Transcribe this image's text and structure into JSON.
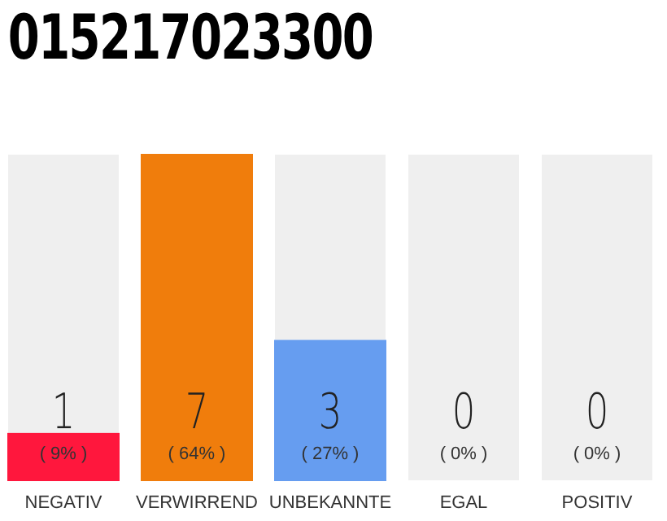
{
  "chart_data": {
    "type": "bar",
    "title": "015217023300",
    "categories": [
      "NEGATIV",
      "VERWIRREND",
      "UNBEKANNTE",
      "EGAL",
      "POSITIV"
    ],
    "values": [
      1,
      7,
      3,
      0,
      0
    ],
    "colors": [
      "#ff173d",
      "#f07d0c",
      "#669df0",
      "#7cc35c",
      "#1e9e3c"
    ],
    "tick_labels": "x",
    "data_labels": true,
    "bands": [
      {
        "axis": "x",
        "from": "NEGATIV",
        "to": "NEGATIV",
        "color": "#efefef"
      },
      {
        "axis": "x",
        "from": "UNBEKANNTE",
        "to": "UNBEKANNTE",
        "color": "#efefef"
      },
      {
        "axis": "x",
        "from": "EGAL",
        "to": "EGAL",
        "color": "#efefef"
      },
      {
        "axis": "x",
        "from": "POSITIV",
        "to": "POSITIV",
        "color": "#efefef"
      }
    ],
    "annotations": [
      "( 9% )",
      "( 64% )",
      "( 27% )",
      "( 0% )",
      "( 0% )"
    ]
  }
}
